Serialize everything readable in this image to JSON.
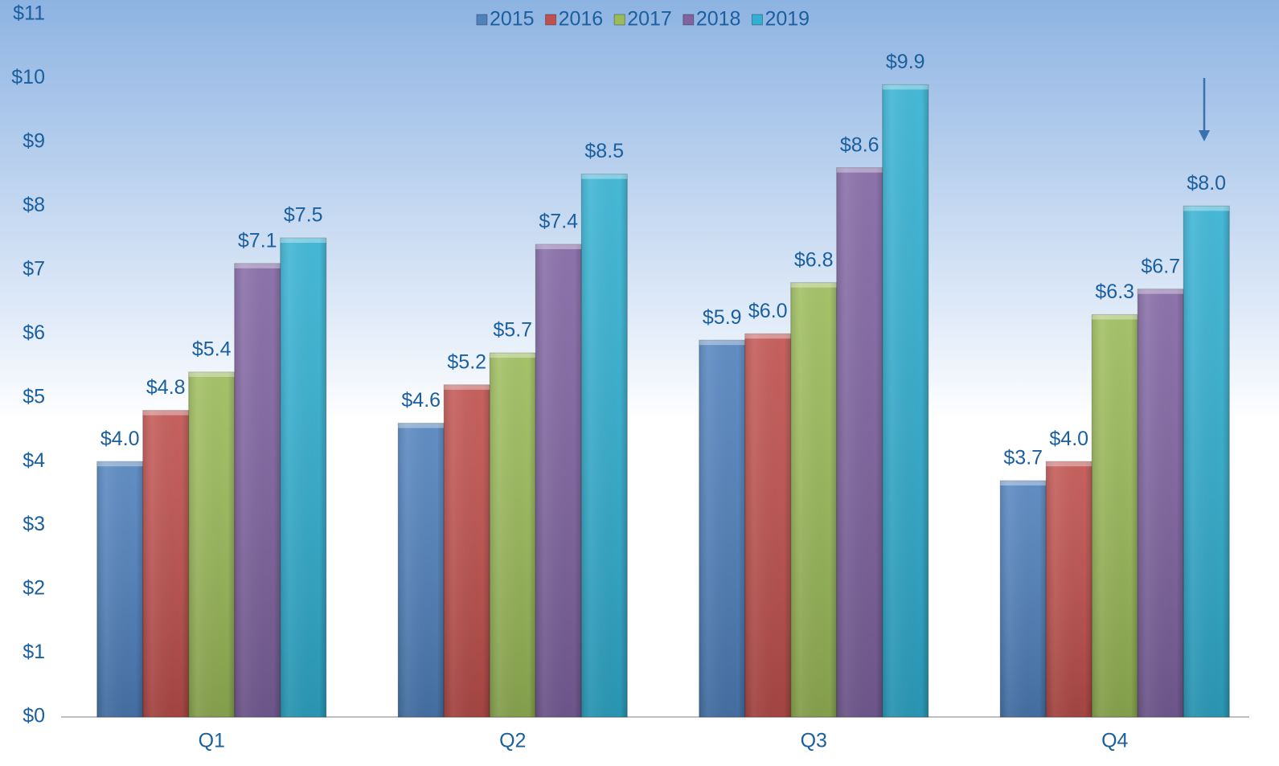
{
  "chart_data": {
    "type": "bar",
    "categories": [
      "Q1",
      "Q2",
      "Q3",
      "Q4"
    ],
    "series": [
      {
        "name": "2015",
        "color": "#4f81bd",
        "values": [
          4.0,
          4.6,
          5.9,
          3.7
        ],
        "value_labels": [
          "$4.0",
          "$4.6",
          "$5.9",
          "$3.7"
        ]
      },
      {
        "name": "2016",
        "color": "#c0504d",
        "values": [
          4.8,
          5.2,
          6.0,
          4.0
        ],
        "value_labels": [
          "$4.8",
          "$5.2",
          "$6.0",
          "$4.0"
        ]
      },
      {
        "name": "2017",
        "color": "#9bbb59",
        "values": [
          5.4,
          5.7,
          6.8,
          6.3
        ],
        "value_labels": [
          "$5.4",
          "$5.7",
          "$6.8",
          "$6.3"
        ]
      },
      {
        "name": "2018",
        "color": "#8064a2",
        "values": [
          7.1,
          7.4,
          8.6,
          6.7
        ],
        "value_labels": [
          "$7.1",
          "$7.4",
          "$8.6",
          "$6.7"
        ]
      },
      {
        "name": "2019",
        "color": "#31b0d2",
        "values": [
          7.5,
          8.5,
          9.9,
          8.0
        ],
        "value_labels": [
          "$7.5",
          "$8.5",
          "$9.9",
          "$8.0"
        ]
      }
    ],
    "ylim": [
      0,
      11
    ],
    "yticks": [
      {
        "value": 0,
        "label": "$0"
      },
      {
        "value": 1,
        "label": "$1"
      },
      {
        "value": 2,
        "label": "$2"
      },
      {
        "value": 3,
        "label": "$3"
      },
      {
        "value": 4,
        "label": "$4"
      },
      {
        "value": 5,
        "label": "$5"
      },
      {
        "value": 6,
        "label": "$6"
      },
      {
        "value": 7,
        "label": "$7"
      },
      {
        "value": 8,
        "label": "$8"
      },
      {
        "value": 9,
        "label": "$9"
      },
      {
        "value": 10,
        "label": "$10"
      },
      {
        "value": 11,
        "label": "$11"
      }
    ],
    "legend": "top"
  }
}
